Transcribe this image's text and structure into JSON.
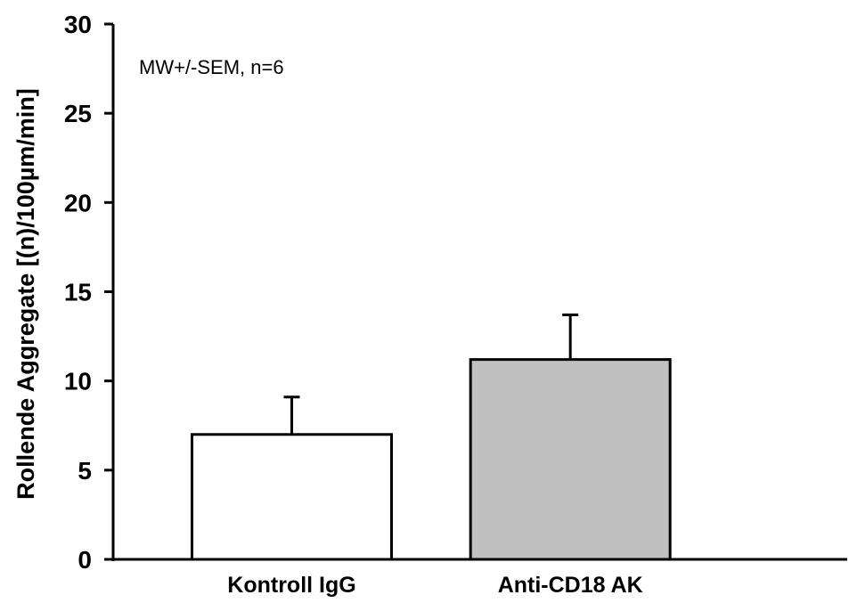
{
  "chart_data": {
    "type": "bar",
    "title": "",
    "xlabel": "",
    "ylabel": "Rollende Aggregate [(n)/100µm/min]",
    "annotation": "MW+/-SEM, n=6",
    "ylim": [
      0,
      30
    ],
    "yticks": [
      "0",
      "5",
      "10",
      "15",
      "20",
      "25",
      "30"
    ],
    "categories": [
      "Kontroll IgG",
      "Anti-CD18 AK"
    ],
    "values": [
      7.0,
      11.2
    ],
    "errors": [
      2.1,
      2.5
    ],
    "bar_colors": [
      "#ffffff",
      "#c0c0c0"
    ],
    "grid": false,
    "legend": "none"
  }
}
